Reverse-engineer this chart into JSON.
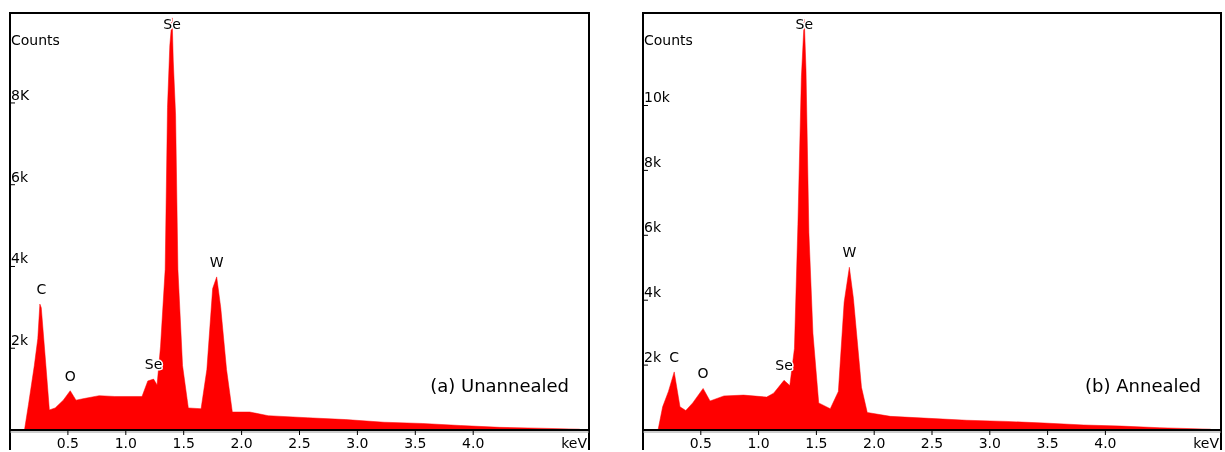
{
  "chart_data": [
    {
      "type": "area",
      "xlabel": "keV",
      "ylabel": "Counts",
      "xlim": [
        0,
        5
      ],
      "xticks": [
        {
          "value": 0.5,
          "label": "0.5"
        },
        {
          "value": 1,
          "label": "1.0"
        },
        {
          "value": 1.5,
          "label": "1.5"
        },
        {
          "value": 2,
          "label": "2.0"
        },
        {
          "value": 2.5,
          "label": "2.5"
        },
        {
          "value": 3,
          "label": "3.0"
        },
        {
          "value": 3.5,
          "label": "3.5"
        },
        {
          "value": 4,
          "label": "4.0"
        }
      ],
      "ylim": [
        0,
        10200
      ],
      "yticks": [
        {
          "value": 2000,
          "label": "2k"
        },
        {
          "value": 4000,
          "label": "4k"
        },
        {
          "value": 6000,
          "label": "6k"
        },
        {
          "value": 8000,
          "label": "8K"
        }
      ],
      "x": [
        0.125,
        0.16,
        0.21,
        0.24,
        0.258,
        0.27,
        0.31,
        0.34,
        0.39,
        0.46,
        0.52,
        0.57,
        0.64,
        0.77,
        0.905,
        1.14,
        1.19,
        1.24,
        1.27,
        1.3,
        1.34,
        1.36,
        1.38,
        1.4,
        1.41,
        1.43,
        1.45,
        1.49,
        1.54,
        1.65,
        1.7,
        1.75,
        1.785,
        1.82,
        1.87,
        1.92,
        2.07,
        2.23,
        2.57,
        2.9,
        3.23,
        3.56,
        3.89,
        4.23,
        4.56,
        4.92
      ],
      "series": [
        {
          "color": "#ff0000",
          "values": [
            0,
            630,
            1575,
            2235,
            3080,
            2990,
            1575,
            490,
            540,
            730,
            960,
            730,
            770,
            840,
            820,
            820,
            1200,
            1245,
            1100,
            2050,
            3930,
            7890,
            9400,
            10080,
            9025,
            7700,
            3930,
            1575,
            540,
            520,
            1480,
            3460,
            3745,
            2990,
            1480,
            440,
            440,
            350,
            300,
            255,
            190,
            160,
            110,
            65,
            45,
            20
          ]
        }
      ],
      "annotations": [
        {
          "text": "C",
          "x": 0.27,
          "y": 3080
        },
        {
          "text": "O",
          "x": 0.52,
          "y": 960
        },
        {
          "text": "Se",
          "x": 1.24,
          "y": 1245
        },
        {
          "text": "Se",
          "x": 1.4,
          "y": 10080
        },
        {
          "text": "W",
          "x": 1.785,
          "y": 3745
        },
        "(a)  Unannealed"
      ]
    },
    {
      "type": "area",
      "xlabel": "keV",
      "ylabel": "Counts",
      "xlim": [
        0,
        5
      ],
      "xticks": [
        {
          "value": 0.5,
          "label": "0.5"
        },
        {
          "value": 1,
          "label": "1.0"
        },
        {
          "value": 1.5,
          "label": "1.5"
        },
        {
          "value": 2,
          "label": "2.0"
        },
        {
          "value": 2.5,
          "label": "2.5"
        },
        {
          "value": 3,
          "label": "3.0"
        },
        {
          "value": 3.5,
          "label": "3.5"
        },
        {
          "value": 4,
          "label": "4.0"
        }
      ],
      "ylim": [
        0,
        12850
      ],
      "yticks": [
        {
          "value": 2000,
          "label": "2k"
        },
        {
          "value": 4000,
          "label": "4k"
        },
        {
          "value": 6000,
          "label": "6k"
        },
        {
          "value": 8000,
          "label": "8k"
        },
        {
          "value": 10000,
          "label": "10k"
        }
      ],
      "x": [
        0.13,
        0.17,
        0.22,
        0.27,
        0.32,
        0.37,
        0.43,
        0.52,
        0.58,
        0.7,
        0.87,
        1.07,
        1.13,
        1.22,
        1.27,
        1.31,
        1.34,
        1.37,
        1.395,
        1.41,
        1.435,
        1.47,
        1.52,
        1.62,
        1.69,
        1.74,
        1.785,
        1.82,
        1.89,
        1.94,
        2.14,
        2.47,
        2.8,
        3.14,
        3.47,
        3.81,
        4.14,
        4.47,
        4.91
      ],
      "series": [
        {
          "color": "#ff0000",
          "values": [
            0,
            715,
            1190,
            1790,
            715,
            600,
            835,
            1280,
            895,
            1050,
            1075,
            1015,
            1135,
            1530,
            1370,
            2510,
            6330,
            10870,
            12660,
            11100,
            6090,
            2985,
            835,
            655,
            1190,
            3940,
            5015,
            4060,
            1315,
            540,
            420,
            360,
            300,
            265,
            215,
            155,
            120,
            70,
            25
          ]
        }
      ],
      "annotations": [
        {
          "text": "C",
          "x": 0.27,
          "y": 1790
        },
        {
          "text": "O",
          "x": 0.52,
          "y": 1280
        },
        {
          "text": "Se",
          "x": 1.22,
          "y": 1530
        },
        {
          "text": "Se",
          "x": 1.395,
          "y": 12660
        },
        {
          "text": "W",
          "x": 1.785,
          "y": 5015
        },
        "(b)  Annealed"
      ]
    }
  ]
}
